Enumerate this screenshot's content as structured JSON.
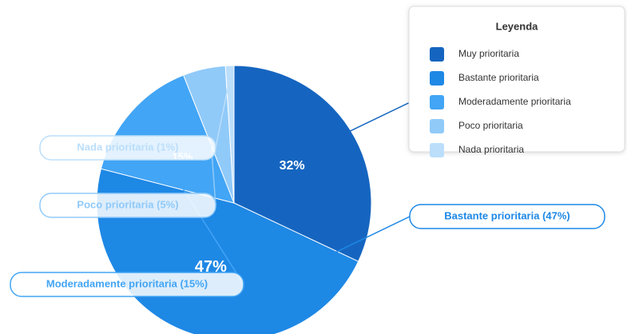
{
  "chart_data": {
    "type": "pie",
    "legend_title": "Leyenda",
    "legend_position": "top-right",
    "categories": [
      "Muy prioritaria",
      "Bastante prioritaria",
      "Moderadamente prioritaria",
      "Poco prioritaria",
      "Nada prioritaria"
    ],
    "values": [
      32,
      47,
      15,
      5,
      1
    ],
    "value_labels": [
      "32%",
      "47%",
      "15%",
      null,
      null
    ],
    "callout_labels": [
      null,
      "Bastante prioritaria (47%)",
      "Moderadamente prioritaria (15%)",
      "Poco prioritaria (5%)",
      "Nada prioritaria (1%)"
    ],
    "colors": [
      "#1565c0",
      "#1e88e5",
      "#42a5f5",
      "#90caf9",
      "#bbdefb"
    ]
  }
}
